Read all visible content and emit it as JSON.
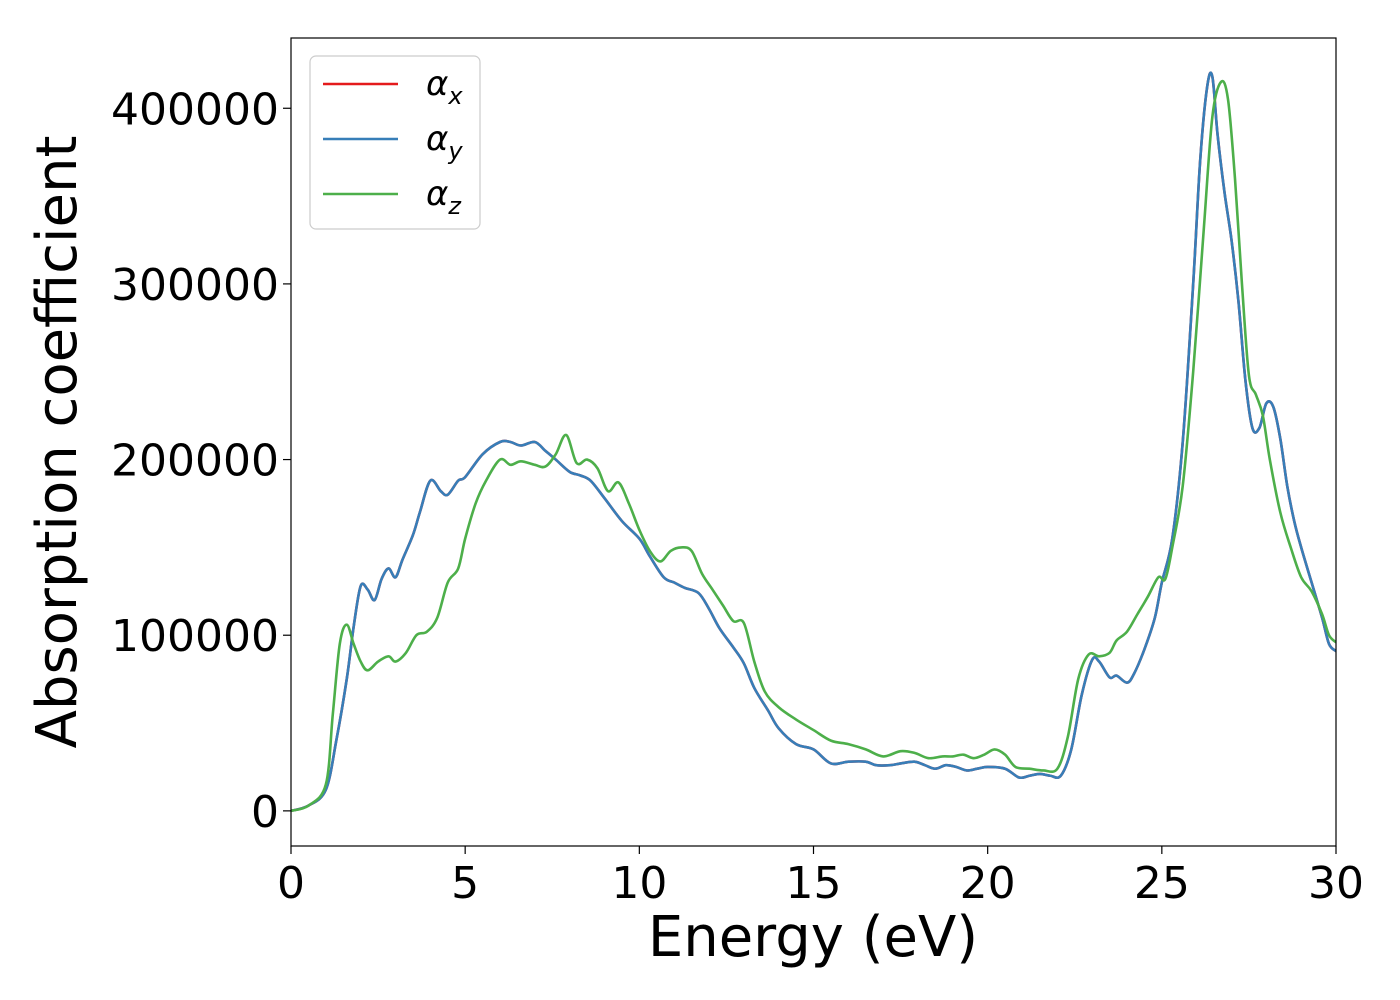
{
  "chart_data": {
    "type": "line",
    "title": "",
    "xlabel": "Energy (eV)",
    "ylabel": "Absorption coefficient",
    "xlim": [
      0,
      30
    ],
    "ylim": [
      -20000,
      440000
    ],
    "xticks": [
      0,
      5,
      10,
      15,
      20,
      25,
      30
    ],
    "xtick_labels": [
      "0",
      "5",
      "10",
      "15",
      "20",
      "25",
      "30"
    ],
    "yticks": [
      0,
      100000,
      200000,
      300000,
      400000
    ],
    "ytick_labels": [
      "0",
      "100000",
      "200000",
      "300000",
      "400000"
    ],
    "grid": false,
    "legend_position": "top-left",
    "series": [
      {
        "name": "α",
        "subscript": "x",
        "color": "#e41a1c",
        "x": [
          0,
          0.5,
          1.0,
          1.3,
          1.6,
          1.8,
          2.0,
          2.2,
          2.4,
          2.6,
          2.8,
          3.0,
          3.2,
          3.5,
          3.7,
          4.0,
          4.3,
          4.5,
          4.8,
          5.0,
          5.5,
          6.0,
          6.3,
          6.6,
          7.0,
          7.3,
          7.6,
          8.0,
          8.3,
          8.6,
          9.0,
          9.5,
          10.0,
          10.3,
          10.7,
          11.0,
          11.3,
          11.7,
          12.0,
          12.3,
          12.7,
          13.0,
          13.3,
          13.7,
          14.0,
          14.5,
          15.0,
          15.5,
          16.0,
          16.5,
          16.8,
          17.2,
          17.5,
          17.9,
          18.2,
          18.5,
          18.8,
          19.1,
          19.4,
          19.7,
          20.0,
          20.5,
          20.9,
          21.2,
          21.5,
          21.8,
          22.1,
          22.4,
          22.7,
          23.0,
          23.2,
          23.5,
          23.7,
          24.0,
          24.2,
          24.5,
          24.8,
          25.0,
          25.3,
          25.6,
          25.9,
          26.1,
          26.3,
          26.45,
          26.6,
          26.8,
          27.0,
          27.2,
          27.4,
          27.6,
          27.8,
          28.0,
          28.2,
          28.4,
          28.6,
          28.8,
          29.0,
          29.3,
          29.6,
          29.8,
          30.0
        ],
        "y": [
          0,
          3000,
          12000,
          40000,
          75000,
          105000,
          128000,
          126000,
          120000,
          132000,
          138000,
          133000,
          143000,
          157000,
          170000,
          188000,
          182000,
          180000,
          188000,
          190000,
          203000,
          210000,
          210000,
          208000,
          210000,
          205000,
          200000,
          193000,
          191000,
          188000,
          178000,
          165000,
          155000,
          145000,
          133000,
          130000,
          127000,
          124000,
          115000,
          104000,
          93000,
          84000,
          70000,
          57000,
          47000,
          38000,
          35000,
          27000,
          28000,
          28000,
          26000,
          26000,
          27000,
          28000,
          26000,
          24000,
          26000,
          25000,
          23000,
          24000,
          25000,
          24000,
          19000,
          20000,
          21000,
          20000,
          20000,
          35000,
          66000,
          86000,
          85000,
          76000,
          77000,
          73000,
          78000,
          92000,
          110000,
          130000,
          155000,
          210000,
          300000,
          370000,
          412000,
          418000,
          385000,
          352000,
          325000,
          290000,
          245000,
          218000,
          218000,
          232000,
          230000,
          212000,
          185000,
          165000,
          150000,
          130000,
          110000,
          95000,
          91000
        ]
      },
      {
        "name": "α",
        "subscript": "y",
        "color": "#377eb8",
        "x": [
          0,
          0.5,
          1.0,
          1.3,
          1.6,
          1.8,
          2.0,
          2.2,
          2.4,
          2.6,
          2.8,
          3.0,
          3.2,
          3.5,
          3.7,
          4.0,
          4.3,
          4.5,
          4.8,
          5.0,
          5.5,
          6.0,
          6.3,
          6.6,
          7.0,
          7.3,
          7.6,
          8.0,
          8.3,
          8.6,
          9.0,
          9.5,
          10.0,
          10.3,
          10.7,
          11.0,
          11.3,
          11.7,
          12.0,
          12.3,
          12.7,
          13.0,
          13.3,
          13.7,
          14.0,
          14.5,
          15.0,
          15.5,
          16.0,
          16.5,
          16.8,
          17.2,
          17.5,
          17.9,
          18.2,
          18.5,
          18.8,
          19.1,
          19.4,
          19.7,
          20.0,
          20.5,
          20.9,
          21.2,
          21.5,
          21.8,
          22.1,
          22.4,
          22.7,
          23.0,
          23.2,
          23.5,
          23.7,
          24.0,
          24.2,
          24.5,
          24.8,
          25.0,
          25.3,
          25.6,
          25.9,
          26.1,
          26.3,
          26.45,
          26.6,
          26.8,
          27.0,
          27.2,
          27.4,
          27.6,
          27.8,
          28.0,
          28.2,
          28.4,
          28.6,
          28.8,
          29.0,
          29.3,
          29.6,
          29.8,
          30.0
        ],
        "y": [
          0,
          3000,
          12000,
          40000,
          75000,
          105000,
          128000,
          126000,
          120000,
          132000,
          138000,
          133000,
          143000,
          157000,
          170000,
          188000,
          182000,
          180000,
          188000,
          190000,
          203000,
          210000,
          210000,
          208000,
          210000,
          205000,
          200000,
          193000,
          191000,
          188000,
          178000,
          165000,
          155000,
          145000,
          133000,
          130000,
          127000,
          124000,
          115000,
          104000,
          93000,
          84000,
          70000,
          57000,
          47000,
          38000,
          35000,
          27000,
          28000,
          28000,
          26000,
          26000,
          27000,
          28000,
          26000,
          24000,
          26000,
          25000,
          23000,
          24000,
          25000,
          24000,
          19000,
          20000,
          21000,
          20000,
          20000,
          35000,
          66000,
          86000,
          85000,
          76000,
          77000,
          73000,
          78000,
          92000,
          110000,
          130000,
          155000,
          210000,
          300000,
          370000,
          412000,
          418000,
          385000,
          352000,
          325000,
          290000,
          245000,
          218000,
          218000,
          232000,
          230000,
          212000,
          185000,
          165000,
          150000,
          130000,
          110000,
          95000,
          91000
        ]
      },
      {
        "name": "α",
        "subscript": "z",
        "color": "#4daf4a",
        "x": [
          0,
          0.5,
          1.0,
          1.2,
          1.4,
          1.6,
          1.8,
          2.0,
          2.2,
          2.5,
          2.8,
          3.0,
          3.3,
          3.6,
          3.9,
          4.2,
          4.5,
          4.8,
          5.0,
          5.3,
          5.6,
          6.0,
          6.3,
          6.6,
          7.0,
          7.3,
          7.6,
          7.9,
          8.2,
          8.5,
          8.8,
          9.1,
          9.4,
          9.7,
          10.0,
          10.3,
          10.6,
          10.9,
          11.2,
          11.5,
          11.8,
          12.1,
          12.4,
          12.7,
          13.0,
          13.3,
          13.6,
          14.0,
          14.5,
          15.0,
          15.5,
          16.0,
          16.5,
          17.0,
          17.5,
          17.9,
          18.3,
          18.7,
          19.0,
          19.3,
          19.6,
          19.9,
          20.2,
          20.5,
          20.8,
          21.2,
          21.6,
          22.0,
          22.3,
          22.6,
          22.9,
          23.2,
          23.5,
          23.7,
          24.0,
          24.3,
          24.6,
          24.9,
          25.1,
          25.3,
          25.6,
          25.9,
          26.2,
          26.45,
          26.7,
          26.9,
          27.1,
          27.3,
          27.5,
          27.7,
          27.9,
          28.1,
          28.4,
          28.7,
          29.0,
          29.3,
          29.6,
          29.8,
          30.0
        ],
        "y": [
          0,
          3000,
          15000,
          55000,
          95000,
          106000,
          95000,
          85000,
          80000,
          85000,
          88000,
          85000,
          90000,
          100000,
          102000,
          110000,
          130000,
          138000,
          155000,
          175000,
          188000,
          200000,
          197000,
          199000,
          197000,
          196000,
          203000,
          214000,
          198000,
          200000,
          195000,
          182000,
          187000,
          175000,
          160000,
          148000,
          142000,
          148000,
          150000,
          148000,
          135000,
          126000,
          117000,
          108000,
          107000,
          85000,
          68000,
          59000,
          52000,
          46000,
          40000,
          38000,
          35000,
          31000,
          34000,
          33000,
          30000,
          31000,
          31000,
          32000,
          30000,
          32000,
          35000,
          32000,
          25000,
          24000,
          23000,
          24000,
          42000,
          75000,
          89000,
          88000,
          90000,
          97000,
          102000,
          112000,
          122000,
          133000,
          132000,
          150000,
          185000,
          250000,
          330000,
          395000,
          415000,
          405000,
          360000,
          300000,
          248000,
          237000,
          225000,
          200000,
          170000,
          150000,
          133000,
          125000,
          112000,
          100000,
          96000
        ]
      }
    ]
  }
}
